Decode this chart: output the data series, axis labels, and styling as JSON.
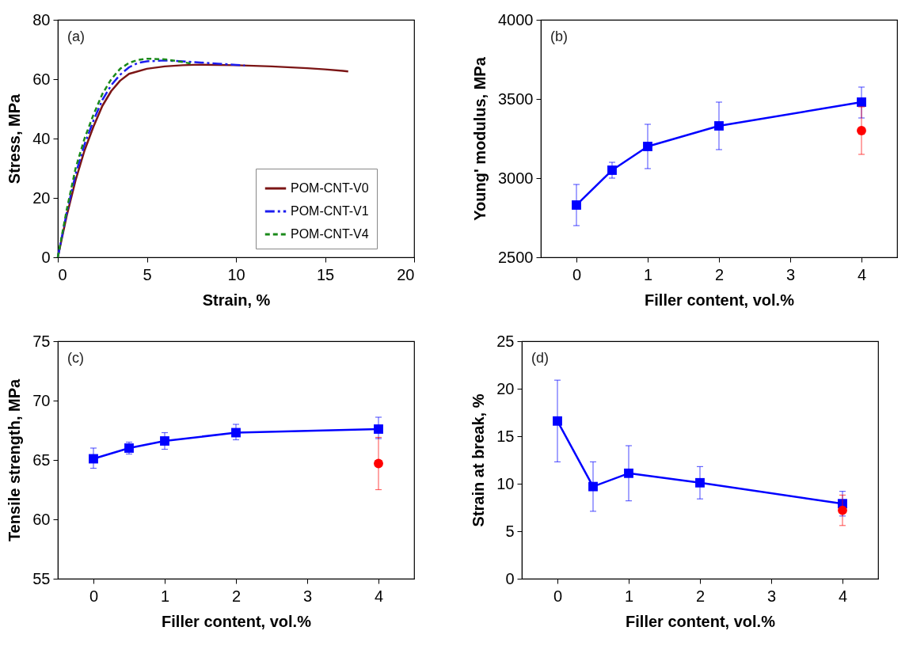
{
  "chart_data": [
    {
      "type": "line",
      "xlabel": "Strain, %",
      "ylabel": "Stress, MPa",
      "xlim": [
        0,
        20
      ],
      "xticks": [
        0,
        5,
        10,
        15,
        20
      ],
      "ylim": [
        0,
        80
      ],
      "yticks": [
        0,
        20,
        40,
        60,
        80
      ],
      "legend": "bottom right",
      "annotations": [
        "(a)"
      ],
      "series": [
        {
          "name": "POM-CNT-V0",
          "color": "#7b1515",
          "line_style": "solid",
          "x": [
            0,
            0.5,
            1,
            1.5,
            2,
            2.5,
            3,
            3.5,
            4,
            5,
            6,
            7,
            8,
            10,
            12,
            14,
            15,
            16,
            16.3
          ],
          "values": [
            0,
            14,
            26,
            36,
            44,
            51,
            56,
            59.5,
            61.8,
            63.5,
            64.3,
            64.7,
            64.9,
            64.7,
            64.3,
            63.7,
            63.3,
            62.8,
            62.6
          ]
        },
        {
          "name": "POM-CNT-V1",
          "color": "#1c1cf0",
          "line_style": "dashdot",
          "x": [
            0,
            0.5,
            1,
            1.5,
            2,
            2.5,
            3,
            3.5,
            4,
            4.5,
            5,
            6,
            7,
            8,
            9,
            10,
            10.5
          ],
          "values": [
            0,
            15,
            28,
            38,
            46,
            53,
            58,
            61.5,
            64,
            65.5,
            66,
            66.3,
            66,
            65.6,
            65.2,
            64.8,
            64.6
          ]
        },
        {
          "name": "POM-CNT-V4",
          "color": "#1a8a1a",
          "line_style": "dashed",
          "x": [
            0,
            0.5,
            1,
            1.5,
            2,
            2.5,
            3,
            3.5,
            4,
            4.5,
            5,
            6,
            7,
            7.5
          ],
          "values": [
            0,
            16,
            30,
            40,
            48,
            55,
            60,
            63.5,
            65.5,
            66.5,
            66.9,
            66.7,
            65.8,
            65.2
          ]
        }
      ]
    },
    {
      "type": "line",
      "xlabel": "Filler content, vol.%",
      "ylabel": "Young' modulus, MPa",
      "xlim": [
        -0.5,
        4.5
      ],
      "xticks": [
        0,
        1,
        2,
        3,
        4
      ],
      "ylim": [
        2500,
        4000
      ],
      "yticks": [
        2500,
        3000,
        3500,
        4000
      ],
      "annotations": [
        "(b)"
      ],
      "series": [
        {
          "color": "#0000ff",
          "marker": "square",
          "x": [
            0,
            0.5,
            1,
            2,
            4
          ],
          "values": [
            2830,
            3050,
            3200,
            3330,
            3480
          ],
          "errors": [
            [
              2700,
              2960
            ],
            [
              3000,
              3100
            ],
            [
              3060,
              3340
            ],
            [
              3180,
              3480
            ],
            [
              3380,
              3575
            ]
          ]
        },
        {
          "color": "#ff0000",
          "marker": "circle",
          "x": [
            4
          ],
          "values": [
            3300
          ],
          "errors": [
            [
              3150,
              3450
            ]
          ]
        }
      ]
    },
    {
      "type": "line",
      "xlabel": "Filler content, vol.%",
      "ylabel": "Tensile strength, MPa",
      "xlim": [
        -0.5,
        4.5
      ],
      "xticks": [
        0,
        1,
        2,
        3,
        4
      ],
      "ylim": [
        55,
        75
      ],
      "yticks": [
        55,
        60,
        65,
        70,
        75
      ],
      "annotations": [
        "(c)"
      ],
      "series": [
        {
          "color": "#0000ff",
          "marker": "square",
          "x": [
            0,
            0.5,
            1,
            2,
            4
          ],
          "values": [
            65.1,
            66.0,
            66.6,
            67.3,
            67.6
          ],
          "errors": [
            [
              64.3,
              66.0
            ],
            [
              65.5,
              66.5
            ],
            [
              65.9,
              67.3
            ],
            [
              66.7,
              68.0
            ],
            [
              66.8,
              68.6
            ]
          ]
        },
        {
          "color": "#ff0000",
          "marker": "circle",
          "x": [
            4
          ],
          "values": [
            64.7
          ],
          "errors": [
            [
              62.5,
              66.9
            ]
          ]
        }
      ]
    },
    {
      "type": "line",
      "xlabel": "Filler content, vol.%",
      "ylabel": "Strain at break, %",
      "xlim": [
        -0.5,
        4.5
      ],
      "xticks": [
        0,
        1,
        2,
        3,
        4
      ],
      "ylim": [
        0,
        25
      ],
      "yticks": [
        0,
        5,
        10,
        15,
        20,
        25
      ],
      "annotations": [
        "(d)"
      ],
      "series": [
        {
          "color": "#0000ff",
          "marker": "square",
          "x": [
            0,
            0.5,
            1,
            2,
            4
          ],
          "values": [
            16.6,
            9.7,
            11.1,
            10.1,
            7.9
          ],
          "errors": [
            [
              12.3,
              20.9
            ],
            [
              7.1,
              12.3
            ],
            [
              8.2,
              14.0
            ],
            [
              8.4,
              11.8
            ],
            [
              6.6,
              9.2
            ]
          ]
        },
        {
          "color": "#ff0000",
          "marker": "circle",
          "x": [
            4
          ],
          "values": [
            7.2
          ],
          "errors": [
            [
              5.6,
              8.8
            ]
          ]
        }
      ]
    }
  ]
}
